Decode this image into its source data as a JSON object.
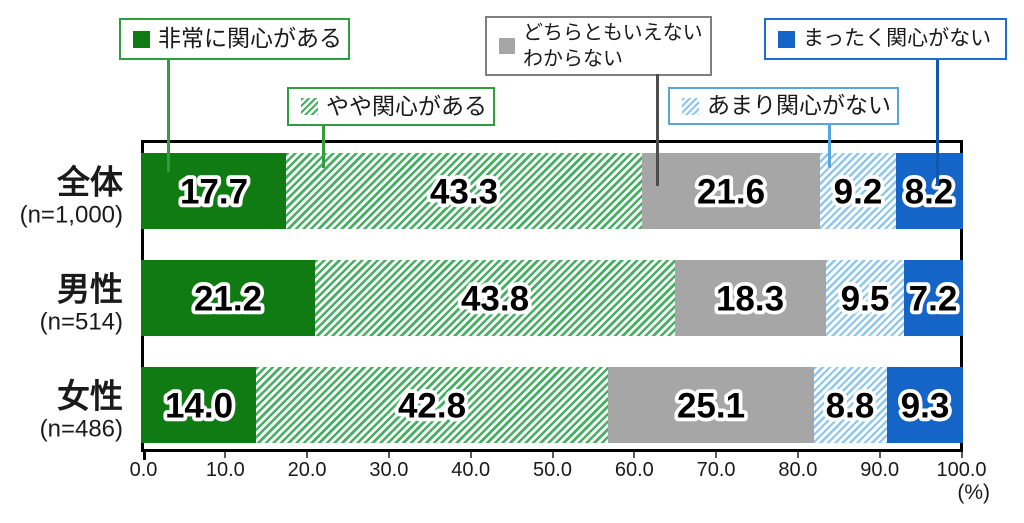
{
  "chart_data": {
    "type": "bar",
    "stacked": true,
    "orientation": "horizontal",
    "title": "",
    "categories": [
      {
        "label": "全体",
        "n_label": "(n=1,000)"
      },
      {
        "label": "男性",
        "n_label": "(n=514)"
      },
      {
        "label": "女性",
        "n_label": "(n=486)"
      }
    ],
    "series": [
      {
        "name": "非常に関心がある",
        "pattern": "solid",
        "color": "#0F7B12",
        "values": [
          17.7,
          21.2,
          14.0
        ]
      },
      {
        "name": "やや関心がある",
        "pattern": "hatch",
        "color": "#45B061",
        "values": [
          43.3,
          43.8,
          42.8
        ]
      },
      {
        "name": "どちらともいえない わからない",
        "pattern": "solid",
        "color": "#A6A6A6",
        "values": [
          21.6,
          18.3,
          25.1
        ]
      },
      {
        "name": "あまり関心がない",
        "pattern": "hatch",
        "color": "#8CC7EF",
        "values": [
          9.2,
          9.5,
          8.8
        ]
      },
      {
        "name": "まったく関心がない",
        "pattern": "solid",
        "color": "#1565C8",
        "values": [
          8.2,
          7.2,
          9.3
        ]
      }
    ],
    "xlim": [
      0,
      100
    ],
    "x_ticks": [
      "0.0",
      "10.0",
      "20.0",
      "30.0",
      "40.0",
      "50.0",
      "60.0",
      "70.0",
      "80.0",
      "90.0",
      "100.0"
    ],
    "x_unit_label": "(%)",
    "legend_position": "top"
  },
  "legend": {
    "items": [
      {
        "lines": [
          "非常に関心がある"
        ],
        "border_color": "#2E9E3E",
        "swatch": "solid-darkgreen",
        "line_color": "#2E9E3E"
      },
      {
        "lines": [
          "やや関心がある"
        ],
        "border_color": "#2E9E3E",
        "swatch": "hatch-green",
        "line_color": "#2E9E3E"
      },
      {
        "lines": [
          "どちらともいえない",
          "わからない"
        ],
        "border_color": "#7F7F7F",
        "swatch": "solid-gray",
        "line_color": "#4D4D4D"
      },
      {
        "lines": [
          "あまり関心がない"
        ],
        "border_color": "#56A5DC",
        "swatch": "hatch-blue",
        "line_color": "#56A5DC"
      },
      {
        "lines": [
          "まったく関心がない"
        ],
        "border_color": "#1C6FCC",
        "swatch": "solid-blue",
        "line_color": "#1157AE"
      }
    ]
  }
}
